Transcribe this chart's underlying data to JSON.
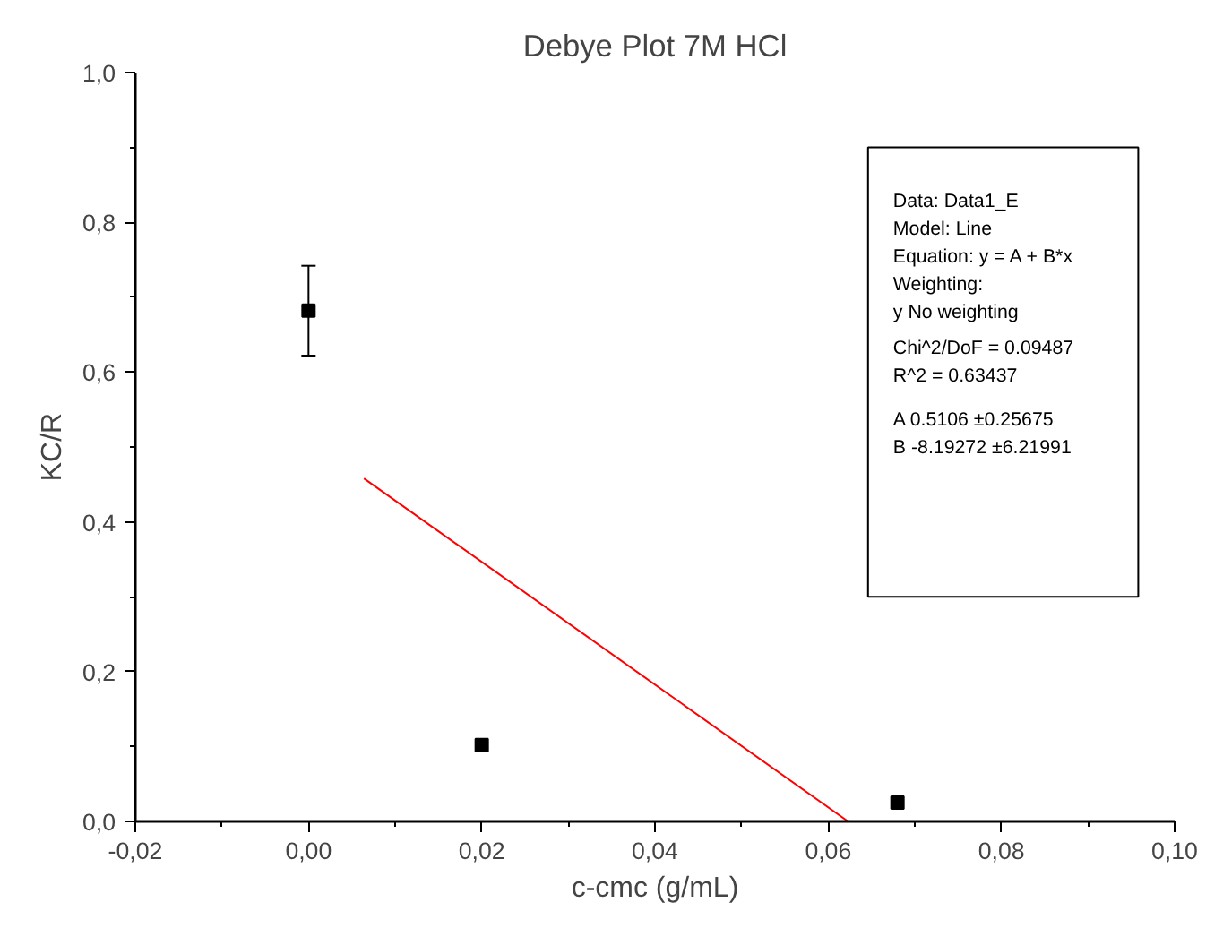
{
  "chart_data": {
    "type": "scatter",
    "title": "Debye Plot 7M HCl",
    "xlabel": "c-cmc (g/mL)",
    "ylabel": "KC/R",
    "xlim": [
      -0.02,
      0.1
    ],
    "ylim": [
      0,
      1.0
    ],
    "xticks": [
      {
        "value": -0.02,
        "label": "-0,02"
      },
      {
        "value": 0,
        "label": "0,00"
      },
      {
        "value": 0.02,
        "label": "0,02"
      },
      {
        "value": 0.04,
        "label": "0,04"
      },
      {
        "value": 0.06,
        "label": "0,06"
      },
      {
        "value": 0.08,
        "label": "0,08"
      },
      {
        "value": 0.1,
        "label": "0,10"
      }
    ],
    "yticks": [
      {
        "value": 0,
        "label": "0,0"
      },
      {
        "value": 0.2,
        "label": "0,2"
      },
      {
        "value": 0.4,
        "label": "0,4"
      },
      {
        "value": 0.6,
        "label": "0,6"
      },
      {
        "value": 0.8,
        "label": "0,8"
      },
      {
        "value": 1.0,
        "label": "1,0"
      }
    ],
    "grid": false,
    "marker": "square",
    "series": [
      {
        "color": "#000000",
        "x": [
          0.0,
          0.02,
          0.068
        ],
        "values": [
          0.682,
          0.102,
          0.025
        ],
        "errors": [
          0.06,
          null,
          null
        ]
      },
      {
        "type": "line",
        "color": "#ff0000",
        "x": [
          0.0064,
          0.0623
        ],
        "values": [
          0.458,
          0.0
        ],
        "marker": "none",
        "line_style": "solid"
      }
    ],
    "annotations": [
      "Data: Data1_E\nModel: Line\nEquation: y = A + B*x\nWeighting:\ny          No weighting",
      "Chi^2/DoF       = 0.09487\nR^2     =  0.63437",
      "A          0.5106  ±0.25675\nB          -8.19272            ±6.21991"
    ]
  }
}
